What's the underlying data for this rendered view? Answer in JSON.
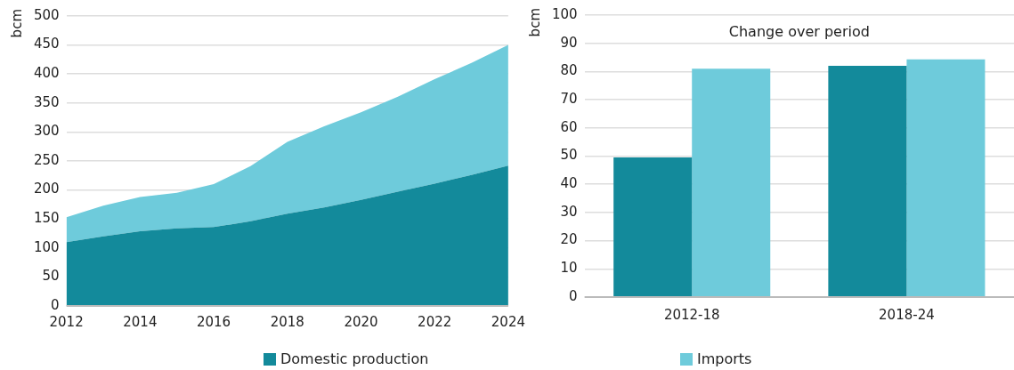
{
  "chart_data": [
    {
      "type": "area",
      "stacked": true,
      "ylabel": "bcm",
      "x": [
        2012,
        2013,
        2014,
        2015,
        2016,
        2017,
        2018,
        2019,
        2020,
        2021,
        2022,
        2023,
        2024
      ],
      "xlim": [
        2012,
        2024
      ],
      "xticks": [
        2012,
        2014,
        2016,
        2018,
        2020,
        2022,
        2024
      ],
      "ylim": [
        0,
        500
      ],
      "yticks": [
        0,
        50,
        100,
        150,
        200,
        250,
        300,
        350,
        400,
        450,
        500
      ],
      "grid": "y",
      "legend": "bottom",
      "series": [
        {
          "name": "Domestic production",
          "color": "#138a9b",
          "values": [
            110,
            120,
            129,
            134,
            136,
            146,
            159,
            170,
            183,
            197,
            211,
            226,
            242
          ]
        },
        {
          "name": "Imports",
          "color": "#6ecbdb",
          "values": [
            43,
            53,
            59,
            61,
            74,
            95,
            124,
            140,
            151,
            164,
            180,
            193,
            208
          ]
        }
      ]
    },
    {
      "type": "bar",
      "title": "Change over period",
      "ylabel": "bcm",
      "categories": [
        "2012-18",
        "2018-24"
      ],
      "ylim": [
        0,
        100
      ],
      "yticks": [
        0,
        10,
        20,
        30,
        40,
        50,
        60,
        70,
        80,
        90,
        100
      ],
      "grid": "y",
      "series": [
        {
          "color": "#138a9b",
          "values": [
            49.5,
            82
          ]
        },
        {
          "color": "#6ecbdb",
          "values": [
            81,
            84.3
          ]
        }
      ]
    }
  ]
}
